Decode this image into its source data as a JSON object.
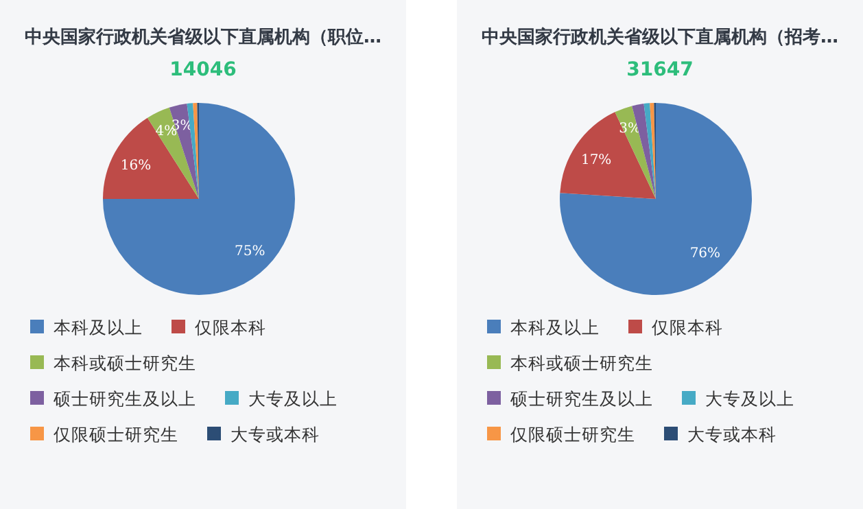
{
  "chart_data": [
    {
      "type": "pie",
      "title": "中央国家行政机关省级以下直属机构（职位…",
      "subtitle": "14046",
      "legend": "bottom",
      "categories": [
        "本科及以上",
        "仅限本科",
        "本科或硕士研究生",
        "硕士研究生及以上",
        "大专及以上",
        "仅限硕士研究生",
        "大专或本科"
      ],
      "values": [
        75,
        16,
        4,
        3,
        1,
        0.7,
        0.3
      ],
      "value_labels": [
        "75%",
        "16%",
        "4%",
        "3%",
        null,
        null,
        null
      ],
      "colors": [
        "#4a7ebb",
        "#be4b48",
        "#98b954",
        "#7d60a0",
        "#46aac5",
        "#f79646",
        "#2c4d75"
      ]
    },
    {
      "type": "pie",
      "title": "中央国家行政机关省级以下直属机构（招考…",
      "subtitle": "31647",
      "legend": "bottom",
      "categories": [
        "本科及以上",
        "仅限本科",
        "本科或硕士研究生",
        "硕士研究生及以上",
        "大专及以上",
        "仅限硕士研究生",
        "大专或本科"
      ],
      "values": [
        76,
        17,
        3,
        2,
        1,
        0.7,
        0.3
      ],
      "value_labels": [
        "76%",
        "17%",
        "3%",
        null,
        null,
        null,
        null
      ],
      "colors": [
        "#4a7ebb",
        "#be4b48",
        "#98b954",
        "#7d60a0",
        "#46aac5",
        "#f79646",
        "#2c4d75"
      ]
    }
  ]
}
